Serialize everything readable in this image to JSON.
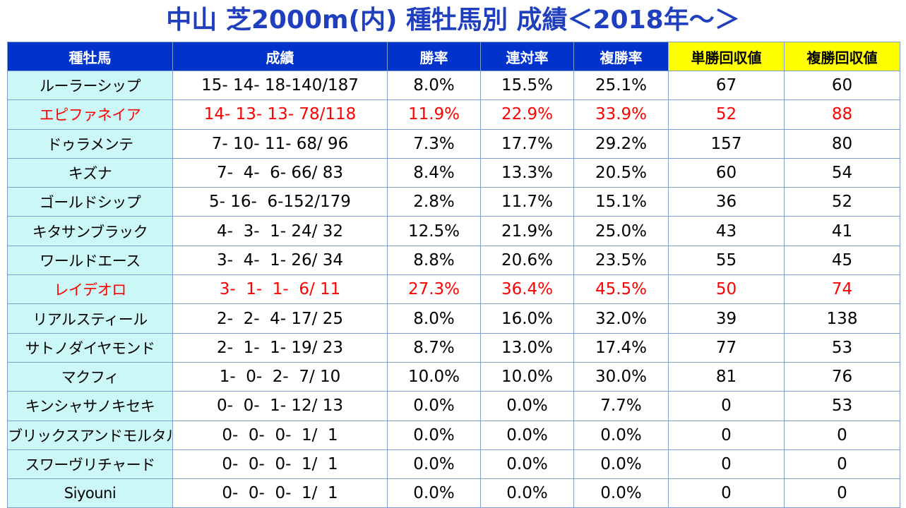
{
  "title": "中山 芝2000m(内) 種牡馬別 成績＜2018年～＞",
  "columns": [
    "種牡馬",
    "成績",
    "勝率",
    "連対率",
    "複勝率",
    "単勝回収値",
    "複勝回収値"
  ],
  "rows": [
    {
      "sire": "ルーラーシップ",
      "record": "15- 14- 18-140/187",
      "win": "8.0%",
      "top2": "15.5%",
      "top3": "25.1%",
      "win_ret": "67",
      "place_ret": "60",
      "highlight": false
    },
    {
      "sire": "エピファネイア",
      "record": "14- 13- 13- 78/118",
      "win": "11.9%",
      "top2": "22.9%",
      "top3": "33.9%",
      "win_ret": "52",
      "place_ret": "88",
      "highlight": true
    },
    {
      "sire": "ドゥラメンテ",
      "record": "7- 10- 11- 68/ 96",
      "win": "7.3%",
      "top2": "17.7%",
      "top3": "29.2%",
      "win_ret": "157",
      "place_ret": "80",
      "highlight": false
    },
    {
      "sire": "キズナ",
      "record": "7-  4-  6- 66/ 83",
      "win": "8.4%",
      "top2": "13.3%",
      "top3": "20.5%",
      "win_ret": "60",
      "place_ret": "54",
      "highlight": false
    },
    {
      "sire": "ゴールドシップ",
      "record": "5- 16-  6-152/179",
      "win": "2.8%",
      "top2": "11.7%",
      "top3": "15.1%",
      "win_ret": "36",
      "place_ret": "52",
      "highlight": false
    },
    {
      "sire": "キタサンブラック",
      "record": "4-  3-  1- 24/ 32",
      "win": "12.5%",
      "top2": "21.9%",
      "top3": "25.0%",
      "win_ret": "43",
      "place_ret": "41",
      "highlight": false
    },
    {
      "sire": "ワールドエース",
      "record": "3-  4-  1- 26/ 34",
      "win": "8.8%",
      "top2": "20.6%",
      "top3": "23.5%",
      "win_ret": "55",
      "place_ret": "45",
      "highlight": false
    },
    {
      "sire": "レイデオロ",
      "record": "3-  1-  1-  6/ 11",
      "win": "27.3%",
      "top2": "36.4%",
      "top3": "45.5%",
      "win_ret": "50",
      "place_ret": "74",
      "highlight": true
    },
    {
      "sire": "リアルスティール",
      "record": "2-  2-  4- 17/ 25",
      "win": "8.0%",
      "top2": "16.0%",
      "top3": "32.0%",
      "win_ret": "39",
      "place_ret": "138",
      "highlight": false
    },
    {
      "sire": "サトノダイヤモンド",
      "record": "2-  1-  1- 19/ 23",
      "win": "8.7%",
      "top2": "13.0%",
      "top3": "17.4%",
      "win_ret": "77",
      "place_ret": "53",
      "highlight": false
    },
    {
      "sire": "マクフィ",
      "record": "1-  0-  2-  7/ 10",
      "win": "10.0%",
      "top2": "10.0%",
      "top3": "30.0%",
      "win_ret": "81",
      "place_ret": "76",
      "highlight": false
    },
    {
      "sire": "キンシャサノキセキ",
      "record": "0-  0-  1- 12/ 13",
      "win": "0.0%",
      "top2": "0.0%",
      "top3": "7.7%",
      "win_ret": "0",
      "place_ret": "53",
      "highlight": false
    },
    {
      "sire": "ブリックスアンドモルタル",
      "record": "0-  0-  0-  1/  1",
      "win": "0.0%",
      "top2": "0.0%",
      "top3": "0.0%",
      "win_ret": "0",
      "place_ret": "0",
      "highlight": false
    },
    {
      "sire": "スワーヴリチャード",
      "record": "0-  0-  0-  1/  1",
      "win": "0.0%",
      "top2": "0.0%",
      "top3": "0.0%",
      "win_ret": "0",
      "place_ret": "0",
      "highlight": false
    },
    {
      "sire": "Siyouni",
      "record": "0-  0-  0-  1/  1",
      "win": "0.0%",
      "top2": "0.0%",
      "top3": "0.0%",
      "win_ret": "0",
      "place_ret": "0",
      "highlight": false
    }
  ],
  "colors": {
    "header_blue": "#0033cc",
    "header_yellow": "#ffff00",
    "sire_cyan": "#ccf7f7",
    "highlight_red": "#ff0000",
    "title_blue": "#1f3fbf"
  }
}
